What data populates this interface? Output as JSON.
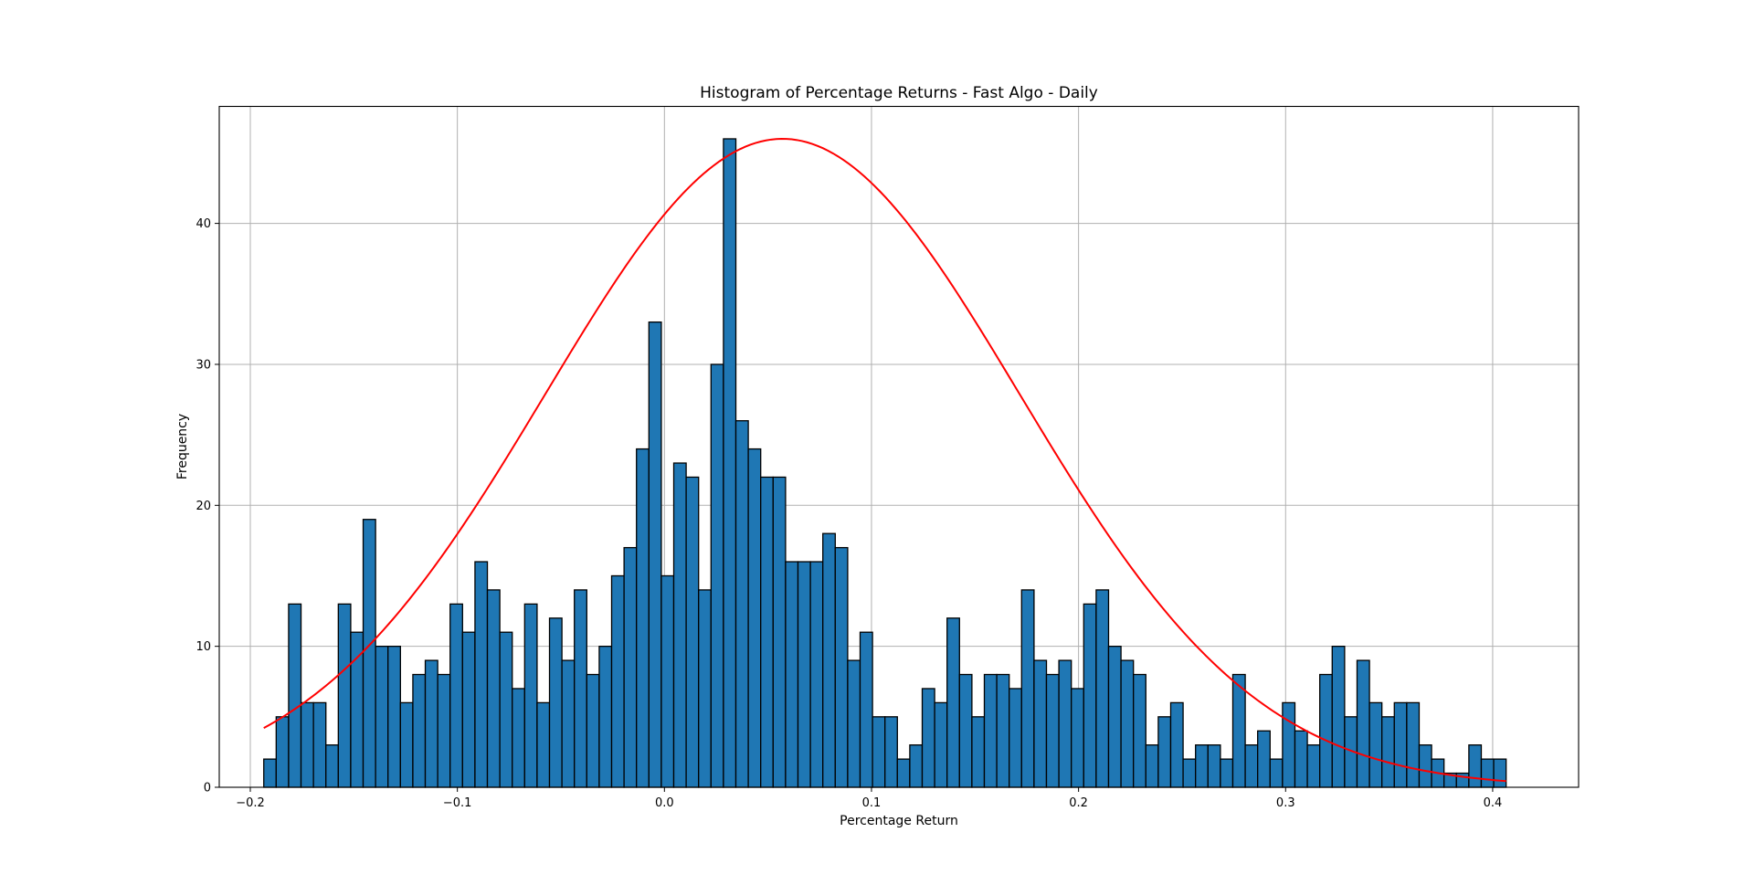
{
  "chart_data": {
    "type": "bar",
    "title": "Histogram of Percentage Returns - Fast Algo - Daily",
    "xlabel": "Percentage Return",
    "ylabel": "Frequency",
    "xlim": [
      -0.215,
      0.4415
    ],
    "ylim": [
      0,
      48.3
    ],
    "grid": true,
    "bin_start": -0.1935,
    "bin_width": 0.006,
    "counts": [
      2,
      5,
      13,
      6,
      6,
      3,
      13,
      11,
      19,
      10,
      10,
      6,
      8,
      9,
      8,
      13,
      11,
      16,
      14,
      11,
      7,
      13,
      6,
      12,
      9,
      14,
      8,
      10,
      15,
      17,
      24,
      33,
      15,
      23,
      22,
      14,
      30,
      46,
      26,
      24,
      22,
      22,
      16,
      16,
      16,
      18,
      17,
      9,
      11,
      5,
      5,
      2,
      3,
      7,
      6,
      12,
      8,
      5,
      8,
      8,
      7,
      14,
      9,
      8,
      9,
      7,
      13,
      14,
      10,
      9,
      8,
      3,
      5,
      6,
      2,
      3,
      3,
      2,
      8,
      3,
      4,
      2,
      6,
      4,
      3,
      8,
      10,
      5,
      9,
      6,
      5,
      6,
      6,
      3,
      2,
      1,
      1,
      3,
      2,
      2
    ],
    "xticks": [
      -0.2,
      -0.1,
      0.0,
      0.1,
      0.2,
      0.3,
      0.4
    ],
    "xtick_labels": [
      "−0.2",
      "−0.1",
      "0.0",
      "0.1",
      "0.2",
      "0.3",
      "0.4"
    ],
    "yticks": [
      0,
      10,
      20,
      30,
      40
    ],
    "ytick_labels": [
      "0",
      "10",
      "20",
      "30",
      "40"
    ],
    "fit_curve": {
      "type": "normal",
      "mean": 0.057,
      "std": 0.1145,
      "peak": 46.0,
      "x_range": [
        -0.1935,
        0.4065
      ]
    },
    "colors": {
      "bar": "#1f77b4",
      "bar_edge": "#000000",
      "curve": "#ff0000",
      "grid": "#b0b0b0"
    }
  }
}
